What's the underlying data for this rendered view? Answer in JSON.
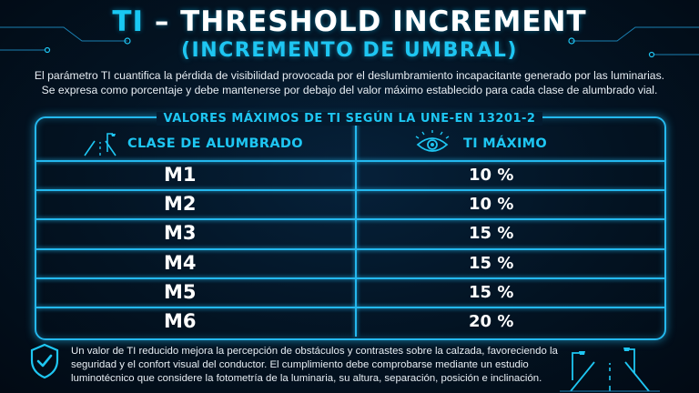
{
  "header": {
    "title_accent": "TI",
    "title_rest": " – THRESHOLD INCREMENT",
    "subtitle": "(INCREMENTO DE UMBRAL)",
    "description_line1": "El parámetro TI cuantifica la pérdida de visibilidad provocada por el deslumbramiento incapacitante generado por las luminarias.",
    "description_line2": "Se expresa como porcentaje y debe mantenerse por debajo del valor máximo establecido para cada clase de alumbrado vial."
  },
  "table": {
    "caption": "VALORES MÁXIMOS DE TI SEGÚN LA UNE-EN 13201-2",
    "col_class_header": "CLASE DE ALUMBRADO",
    "col_value_header": "TI MÁXIMO",
    "col_class_icon": "street-lamp-road-icon",
    "col_value_icon": "eye-icon",
    "rows": [
      {
        "clase": "M1",
        "ti": "10 %"
      },
      {
        "clase": "M2",
        "ti": "10 %"
      },
      {
        "clase": "M3",
        "ti": "15 %"
      },
      {
        "clase": "M4",
        "ti": "15 %"
      },
      {
        "clase": "M5",
        "ti": "15 %"
      },
      {
        "clase": "M6",
        "ti": "20 %"
      }
    ]
  },
  "footer": {
    "text": "Un valor de TI reducido mejora la percepción de obstáculos y contrastes sobre la calzada, favoreciendo la seguridad y el confort visual del conductor. El cumplimiento debe comprobarse mediante un estudio luminotécnico que considere la fotometría de la luminaria, su altura, separación, posición e inclinación.",
    "left_icon": "shield-check-icon",
    "right_icon": "street-lights-road-icon"
  },
  "colors": {
    "accent": "#1ec6f2",
    "background": "#031322",
    "line": "#24b8ee"
  }
}
